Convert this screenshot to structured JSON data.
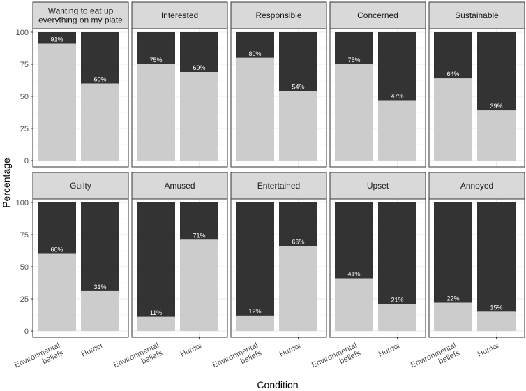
{
  "chart_data": {
    "type": "bar",
    "stacked": true,
    "xlabel": "Condition",
    "ylabel": "Percentage",
    "ylim": [
      0,
      100
    ],
    "yticks": [
      0,
      25,
      50,
      75,
      100
    ],
    "categories": [
      "Environmental beliefs",
      "Humor"
    ],
    "category_lines": [
      [
        "Environmental",
        "beliefs"
      ],
      [
        "Humor"
      ]
    ],
    "colors": {
      "share": "#cccccc",
      "remainder": "#333333",
      "strip": "#d9d9d9",
      "grid": "#ebebeb",
      "border": "#333333"
    },
    "panels": [
      {
        "title": [
          "Wanting to eat up",
          "everything on my plate"
        ],
        "values": [
          91,
          60
        ],
        "labels": [
          "91%",
          "60%"
        ]
      },
      {
        "title": [
          "Interested"
        ],
        "values": [
          75,
          69
        ],
        "labels": [
          "75%",
          "69%"
        ]
      },
      {
        "title": [
          "Responsible"
        ],
        "values": [
          80,
          54
        ],
        "labels": [
          "80%",
          "54%"
        ]
      },
      {
        "title": [
          "Concerned"
        ],
        "values": [
          75,
          47
        ],
        "labels": [
          "75%",
          "47%"
        ]
      },
      {
        "title": [
          "Sustainable"
        ],
        "values": [
          64,
          39
        ],
        "labels": [
          "64%",
          "39%"
        ]
      },
      {
        "title": [
          "Guilty"
        ],
        "values": [
          60,
          31
        ],
        "labels": [
          "60%",
          "31%"
        ]
      },
      {
        "title": [
          "Amused"
        ],
        "values": [
          11,
          71
        ],
        "labels": [
          "11%",
          "71%"
        ]
      },
      {
        "title": [
          "Entertained"
        ],
        "values": [
          12,
          66
        ],
        "labels": [
          "12%",
          "66%"
        ]
      },
      {
        "title": [
          "Upset"
        ],
        "values": [
          41,
          21
        ],
        "labels": [
          "41%",
          "21%"
        ]
      },
      {
        "title": [
          "Annoyed"
        ],
        "values": [
          22,
          15
        ],
        "labels": [
          "22%",
          "15%"
        ]
      }
    ]
  }
}
